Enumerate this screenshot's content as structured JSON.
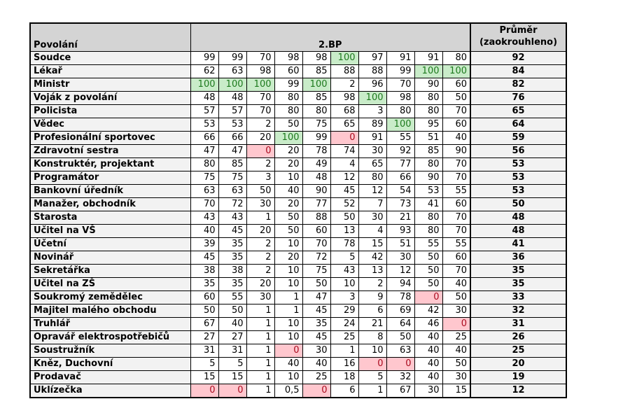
{
  "table": {
    "header": {
      "profession": "Povolání",
      "group": "2.BP",
      "average_line1": "Průměr",
      "average_line2": "(zaokrouhleno)"
    },
    "highlight": {
      "max_value": "100",
      "max_bg": "#c9ecc9",
      "max_text": "#1d7a1d",
      "min_value": "0",
      "min_bg": "#ffc7ce",
      "min_text": "#aa0a1e"
    },
    "rows": [
      {
        "profession": "Soudce",
        "values": [
          "99",
          "99",
          "70",
          "98",
          "98",
          "100",
          "97",
          "91",
          "91",
          "80"
        ],
        "average": "92"
      },
      {
        "profession": "Lékař",
        "values": [
          "62",
          "63",
          "98",
          "60",
          "85",
          "88",
          "88",
          "99",
          "100",
          "100"
        ],
        "average": "84"
      },
      {
        "profession": "Ministr",
        "values": [
          "100",
          "100",
          "100",
          "99",
          "100",
          "2",
          "96",
          "70",
          "90",
          "60"
        ],
        "average": "82"
      },
      {
        "profession": "Voják z povolání",
        "values": [
          "48",
          "48",
          "70",
          "80",
          "85",
          "98",
          "100",
          "98",
          "80",
          "50"
        ],
        "average": "76"
      },
      {
        "profession": "Policista",
        "values": [
          "57",
          "57",
          "70",
          "80",
          "80",
          "68",
          "3",
          "80",
          "80",
          "70"
        ],
        "average": "65"
      },
      {
        "profession": "Vědec",
        "values": [
          "53",
          "53",
          "2",
          "50",
          "75",
          "65",
          "89",
          "100",
          "95",
          "60"
        ],
        "average": "64"
      },
      {
        "profession": "Profesionální sportovec",
        "values": [
          "66",
          "66",
          "20",
          "100",
          "99",
          "0",
          "91",
          "55",
          "51",
          "40"
        ],
        "average": "59"
      },
      {
        "profession": "Zdravotní sestra",
        "values": [
          "47",
          "47",
          "0",
          "20",
          "78",
          "74",
          "30",
          "92",
          "85",
          "90"
        ],
        "average": "56"
      },
      {
        "profession": "Konstruktér, projektant",
        "values": [
          "80",
          "85",
          "2",
          "20",
          "49",
          "4",
          "65",
          "77",
          "80",
          "70"
        ],
        "average": "53"
      },
      {
        "profession": "Programátor",
        "values": [
          "75",
          "75",
          "3",
          "10",
          "48",
          "12",
          "80",
          "66",
          "90",
          "70"
        ],
        "average": "53"
      },
      {
        "profession": "Bankovní úředník",
        "values": [
          "63",
          "63",
          "50",
          "40",
          "90",
          "45",
          "12",
          "54",
          "53",
          "55"
        ],
        "average": "53"
      },
      {
        "profession": "Manažer, obchodník",
        "values": [
          "70",
          "72",
          "30",
          "20",
          "77",
          "52",
          "7",
          "73",
          "41",
          "60"
        ],
        "average": "50"
      },
      {
        "profession": "Starosta",
        "values": [
          "43",
          "43",
          "1",
          "50",
          "88",
          "50",
          "30",
          "21",
          "80",
          "70"
        ],
        "average": "48"
      },
      {
        "profession": "Učitel na VŠ",
        "values": [
          "40",
          "45",
          "20",
          "50",
          "60",
          "13",
          "4",
          "93",
          "80",
          "70"
        ],
        "average": "48"
      },
      {
        "profession": "Účetní",
        "values": [
          "39",
          "35",
          "2",
          "10",
          "70",
          "78",
          "15",
          "51",
          "55",
          "55"
        ],
        "average": "41"
      },
      {
        "profession": "Novinář",
        "values": [
          "45",
          "35",
          "2",
          "20",
          "72",
          "5",
          "42",
          "30",
          "50",
          "60"
        ],
        "average": "36"
      },
      {
        "profession": "Sekretářka",
        "values": [
          "38",
          "38",
          "2",
          "10",
          "75",
          "43",
          "13",
          "12",
          "50",
          "70"
        ],
        "average": "35"
      },
      {
        "profession": "Učitel na ZŠ",
        "values": [
          "35",
          "35",
          "20",
          "10",
          "50",
          "10",
          "2",
          "94",
          "50",
          "40"
        ],
        "average": "35"
      },
      {
        "profession": "Soukromý zemědělec",
        "values": [
          "60",
          "55",
          "30",
          "1",
          "47",
          "3",
          "9",
          "78",
          "0",
          "50"
        ],
        "average": "33"
      },
      {
        "profession": "Majitel malého obchodu",
        "values": [
          "50",
          "50",
          "1",
          "1",
          "45",
          "29",
          "6",
          "69",
          "42",
          "30"
        ],
        "average": "32"
      },
      {
        "profession": "Truhlář",
        "values": [
          "67",
          "40",
          "1",
          "10",
          "35",
          "24",
          "21",
          "64",
          "46",
          "0"
        ],
        "average": "31"
      },
      {
        "profession": "Opravář elektrospotřebičů",
        "values": [
          "27",
          "27",
          "1",
          "10",
          "45",
          "25",
          "8",
          "50",
          "40",
          "25"
        ],
        "average": "26"
      },
      {
        "profession": "Soustružník",
        "values": [
          "31",
          "31",
          "1",
          "0",
          "30",
          "1",
          "10",
          "63",
          "40",
          "40"
        ],
        "average": "25"
      },
      {
        "profession": "Kněz, Duchovní",
        "values": [
          "5",
          "5",
          "1",
          "40",
          "40",
          "16",
          "0",
          "0",
          "40",
          "50"
        ],
        "average": "20"
      },
      {
        "profession": "Prodavač",
        "values": [
          "15",
          "15",
          "1",
          "10",
          "25",
          "18",
          "5",
          "32",
          "40",
          "30"
        ],
        "average": "19"
      },
      {
        "profession": "Uklízečka",
        "values": [
          "0",
          "0",
          "1",
          "0,5",
          "0",
          "6",
          "1",
          "67",
          "30",
          "15"
        ],
        "average": "12"
      }
    ]
  }
}
